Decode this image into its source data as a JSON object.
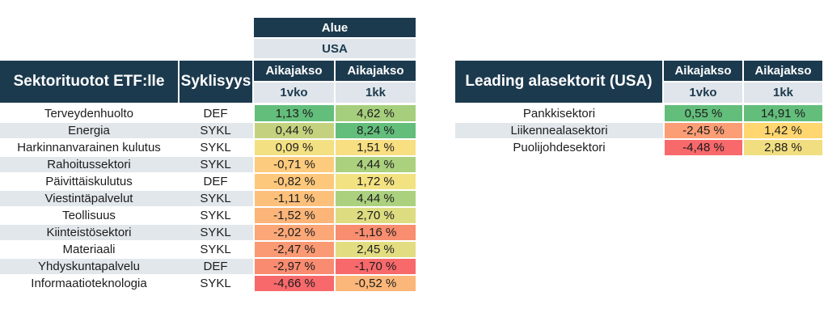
{
  "left_table": {
    "region_label": "Alue",
    "region_value": "USA",
    "title": "Sektorituotot ETF:lle",
    "cyclicality_label": "Syklisyys",
    "period_label": "Aikajakso",
    "period_1": "1vko",
    "period_2": "1kk",
    "rows": [
      {
        "name": "Terveydenhuolto",
        "cyc": "DEF",
        "w1": "1,13 %",
        "m1": "4,62 %",
        "c1": "#63be7b",
        "c2": "#a6cf7d"
      },
      {
        "name": "Energia",
        "cyc": "SYKL",
        "w1": "0,44 %",
        "m1": "8,24 %",
        "c1": "#c4d27f",
        "c2": "#63be7b"
      },
      {
        "name": "Harkinnanvarainen kulutus",
        "cyc": "SYKL",
        "w1": "0,09 %",
        "m1": "1,51 %",
        "c1": "#f3e082",
        "c2": "#f7df82"
      },
      {
        "name": "Rahoitussektori",
        "cyc": "SYKL",
        "w1": "-0,71 %",
        "m1": "4,44 %",
        "c1": "#fdcb7d",
        "c2": "#acd17e"
      },
      {
        "name": "Päivittäiskulutus",
        "cyc": "DEF",
        "w1": "-0,82 %",
        "m1": "1,72 %",
        "c1": "#fdc87c",
        "c2": "#f2e282"
      },
      {
        "name": "Viestintäpalvelut",
        "cyc": "SYKL",
        "w1": "-1,11 %",
        "m1": "4,44 %",
        "c1": "#fcc07b",
        "c2": "#acd17e"
      },
      {
        "name": "Teollisuus",
        "cyc": "SYKL",
        "w1": "-1,52 %",
        "m1": "2,70 %",
        "c1": "#fbb579",
        "c2": "#dedc81"
      },
      {
        "name": "Kiinteistösektori",
        "cyc": "SYKL",
        "w1": "-2,02 %",
        "m1": "-1,16 %",
        "c1": "#fba777",
        "c2": "#f88d6f"
      },
      {
        "name": "Materiaali",
        "cyc": "SYKL",
        "w1": "-2,47 %",
        "m1": "2,45 %",
        "c1": "#fa9a74",
        "c2": "#e3dd81"
      },
      {
        "name": "Yhdyskuntapalvelu",
        "cyc": "DEF",
        "w1": "-2,97 %",
        "m1": "-1,70 %",
        "c1": "#f98b71",
        "c2": "#f8696b"
      },
      {
        "name": "Informaatioteknologia",
        "cyc": "SYKL",
        "w1": "-4,66 %",
        "m1": "-0,52 %",
        "c1": "#f8696b",
        "c2": "#fbb679"
      }
    ]
  },
  "right_table": {
    "title": "Leading alasektorit (USA)",
    "period_label": "Aikajakso",
    "period_1": "1vko",
    "period_2": "1kk",
    "rows": [
      {
        "name": "Pankkisektori",
        "w1": "0,55 %",
        "m1": "14,91 %",
        "c1": "#63be7b",
        "c2": "#63be7b"
      },
      {
        "name": "Liikennealasektori",
        "w1": "-2,45 %",
        "m1": "1,42 %",
        "c1": "#fb9d75",
        "c2": "#ffd66f"
      },
      {
        "name": "Puolijohdesektori",
        "w1": "-4,48 %",
        "m1": "2,88 %",
        "c1": "#f8696b",
        "c2": "#f1de81"
      }
    ]
  }
}
